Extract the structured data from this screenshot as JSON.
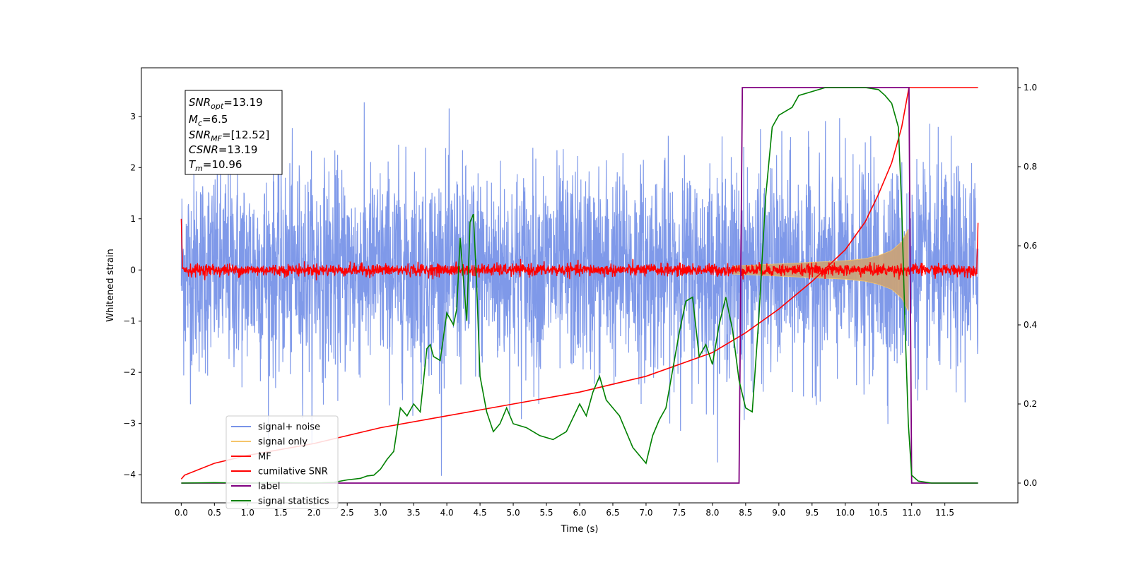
{
  "chart_data": {
    "type": "line",
    "xlabel": "Time (s)",
    "ylabel": "Whitened strain",
    "ylabel_right": "",
    "xlim": [
      -0.6,
      12.6
    ],
    "ylim": [
      -4.55,
      3.95
    ],
    "ylim_right": [
      -0.05,
      1.05
    ],
    "x_ticks": [
      "0.0",
      "0.5",
      "1.0",
      "1.5",
      "2.0",
      "2.5",
      "3.0",
      "3.5",
      "4.0",
      "4.5",
      "5.0",
      "5.5",
      "6.0",
      "6.5",
      "7.0",
      "7.5",
      "8.0",
      "8.5",
      "9.0",
      "9.5",
      "10.0",
      "10.5",
      "11.0",
      "11.5"
    ],
    "y_ticks": [
      -4,
      -3,
      -2,
      -1,
      0,
      1,
      2,
      3
    ],
    "y_ticks_right": [
      "0.0",
      "0.2",
      "0.4",
      "0.6",
      "0.8",
      "1.0"
    ],
    "legend_position": "lower-left",
    "colors": {
      "signal_noise": "#7893e8",
      "signal_only": "#f5c56b",
      "signal_fill": "#c9a27a",
      "mf": "#ff0000",
      "csnr": "#ff0000",
      "label": "#800080",
      "stats": "#008000"
    },
    "legend": [
      {
        "name": "signal+ noise",
        "color": "#7893e8"
      },
      {
        "name": "signal only",
        "color": "#f5c56b"
      },
      {
        "name": "MF",
        "color": "#ff0000"
      },
      {
        "name": "cumilative SNR",
        "color": "#ff0000"
      },
      {
        "name": "label",
        "color": "#800080"
      },
      {
        "name": "signal statistics",
        "color": "#008000"
      }
    ],
    "annotation": {
      "snr_opt_label": "SNR",
      "snr_opt_sub": "opt",
      "snr_opt_value": "=13.19",
      "mc_label": "M",
      "mc_sub": "c",
      "mc_value": "=6.5",
      "snr_mf_label": "SNR",
      "snr_mf_sub": "MF",
      "snr_mf_value": "=[12.52]",
      "csnr_label": "CSNR",
      "csnr_value": "=13.19",
      "tm_label": "T",
      "tm_sub": "m",
      "tm_value": "=10.96"
    },
    "series": [
      {
        "name": "signal+ noise",
        "axis": "left",
        "style": "noise",
        "x_range": [
          0.0,
          12.0
        ],
        "envelope_max": 3.6,
        "envelope_min": -4.15
      },
      {
        "name": "signal only",
        "axis": "left",
        "style": "chirp",
        "x": [
          8.3,
          8.7,
          9.0,
          9.5,
          10.0,
          10.3,
          10.5,
          10.7,
          10.85,
          10.95
        ],
        "amplitude": [
          0.08,
          0.1,
          0.12,
          0.15,
          0.18,
          0.22,
          0.28,
          0.38,
          0.55,
          0.8
        ]
      },
      {
        "name": "MF",
        "axis": "left",
        "style": "noisy-band",
        "x_range": [
          0.0,
          12.0
        ],
        "center": 0.0,
        "spread": 0.12,
        "start_peak": 1.0,
        "end_peak": 0.92
      },
      {
        "name": "cumilative SNR",
        "axis": "right",
        "x": [
          0.0,
          0.05,
          0.5,
          1.0,
          2.0,
          3.0,
          4.0,
          5.0,
          6.0,
          7.0,
          7.5,
          8.0,
          8.5,
          9.0,
          9.5,
          10.0,
          10.3,
          10.5,
          10.7,
          10.85,
          10.96,
          12.0
        ],
        "y": [
          0.01,
          0.02,
          0.05,
          0.07,
          0.1,
          0.14,
          0.17,
          0.2,
          0.23,
          0.27,
          0.3,
          0.33,
          0.38,
          0.44,
          0.51,
          0.59,
          0.66,
          0.73,
          0.81,
          0.9,
          1.0,
          1.0
        ]
      },
      {
        "name": "label",
        "axis": "right",
        "x": [
          0.0,
          8.4,
          8.45,
          10.96,
          11.0,
          12.0
        ],
        "y": [
          0.0,
          0.0,
          1.0,
          1.0,
          0.0,
          0.0
        ]
      },
      {
        "name": "signal statistics",
        "axis": "right",
        "x": [
          0.0,
          0.5,
          1.0,
          1.5,
          2.0,
          2.3,
          2.5,
          2.7,
          2.8,
          2.9,
          3.0,
          3.1,
          3.2,
          3.3,
          3.4,
          3.5,
          3.6,
          3.7,
          3.75,
          3.8,
          3.9,
          4.0,
          4.1,
          4.15,
          4.2,
          4.3,
          4.35,
          4.4,
          4.45,
          4.5,
          4.6,
          4.7,
          4.8,
          4.9,
          5.0,
          5.2,
          5.4,
          5.6,
          5.8,
          6.0,
          6.1,
          6.2,
          6.3,
          6.4,
          6.5,
          6.6,
          6.8,
          7.0,
          7.1,
          7.2,
          7.3,
          7.5,
          7.6,
          7.7,
          7.8,
          7.9,
          8.0,
          8.1,
          8.2,
          8.3,
          8.4,
          8.5,
          8.6,
          8.7,
          8.8,
          8.9,
          9.0,
          9.1,
          9.2,
          9.3,
          9.5,
          9.7,
          10.0,
          10.3,
          10.5,
          10.6,
          10.7,
          10.8,
          10.85,
          10.9,
          10.95,
          11.0,
          11.1,
          11.3,
          11.6,
          12.0
        ],
        "y": [
          0.0,
          0.001,
          0.0,
          0.001,
          0.0,
          0.002,
          0.008,
          0.012,
          0.018,
          0.02,
          0.035,
          0.06,
          0.08,
          0.19,
          0.17,
          0.2,
          0.18,
          0.34,
          0.35,
          0.32,
          0.31,
          0.43,
          0.4,
          0.44,
          0.62,
          0.41,
          0.66,
          0.68,
          0.5,
          0.27,
          0.18,
          0.13,
          0.15,
          0.19,
          0.15,
          0.14,
          0.12,
          0.11,
          0.13,
          0.2,
          0.17,
          0.23,
          0.27,
          0.21,
          0.19,
          0.17,
          0.09,
          0.05,
          0.12,
          0.16,
          0.19,
          0.38,
          0.46,
          0.47,
          0.32,
          0.35,
          0.3,
          0.4,
          0.47,
          0.39,
          0.26,
          0.19,
          0.18,
          0.42,
          0.72,
          0.9,
          0.93,
          0.94,
          0.95,
          0.98,
          0.99,
          1.0,
          1.0,
          1.0,
          0.995,
          0.98,
          0.96,
          0.9,
          0.7,
          0.4,
          0.15,
          0.02,
          0.005,
          0.0,
          0.0,
          0.0
        ]
      }
    ]
  }
}
